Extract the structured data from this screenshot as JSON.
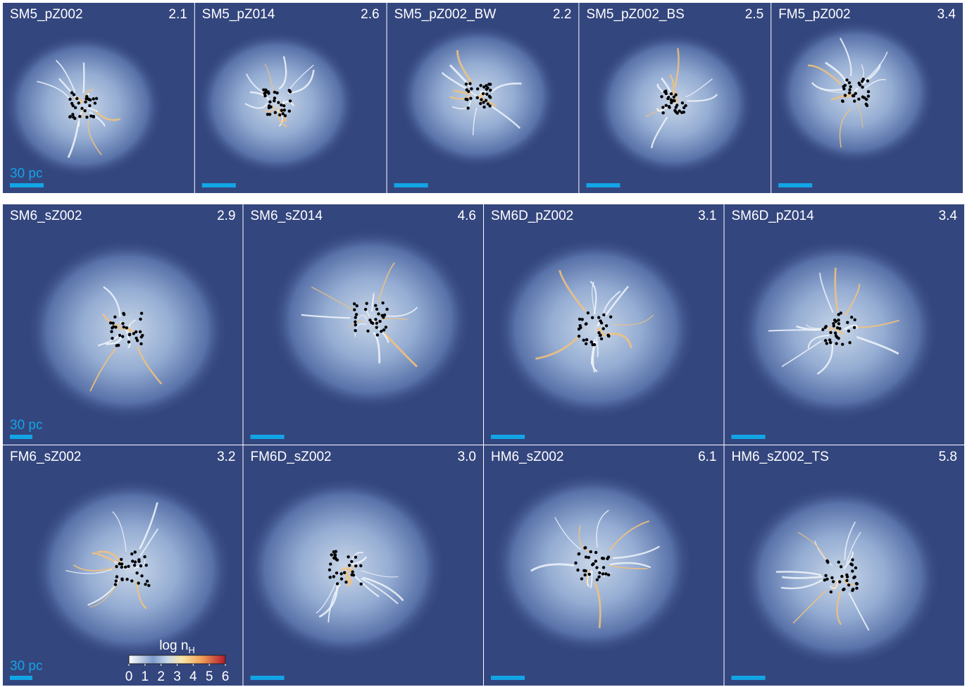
{
  "top_row": {
    "panels": [
      {
        "name": "SM5_pZ002",
        "value": "2.1"
      },
      {
        "name": "SM5_pZ014",
        "value": "2.6"
      },
      {
        "name": "SM5_pZ002_BW",
        "value": "2.2"
      },
      {
        "name": "SM5_pZ002_BS",
        "value": "2.5"
      },
      {
        "name": "FM5_pZ002",
        "value": "3.4"
      }
    ],
    "scale_label": "30 pc"
  },
  "bottom_grid": {
    "panels": [
      {
        "name": "SM6_sZ002",
        "value": "2.9"
      },
      {
        "name": "SM6_sZ014",
        "value": "4.6"
      },
      {
        "name": "SM6D_pZ002",
        "value": "3.1"
      },
      {
        "name": "SM6D_pZ014",
        "value": "3.4"
      },
      {
        "name": "FM6_sZ002",
        "value": "3.2"
      },
      {
        "name": "FM6D_sZ002",
        "value": "3.0"
      },
      {
        "name": "HM6_sZ002",
        "value": "6.1"
      },
      {
        "name": "HM6_sZ002_TS",
        "value": "5.8"
      }
    ],
    "scale_labels": [
      "30 pc",
      "30 pc"
    ]
  },
  "colorbar": {
    "label": "log n",
    "label_sub": "H",
    "ticks": [
      0,
      1,
      2,
      3,
      4,
      5,
      6
    ]
  }
}
